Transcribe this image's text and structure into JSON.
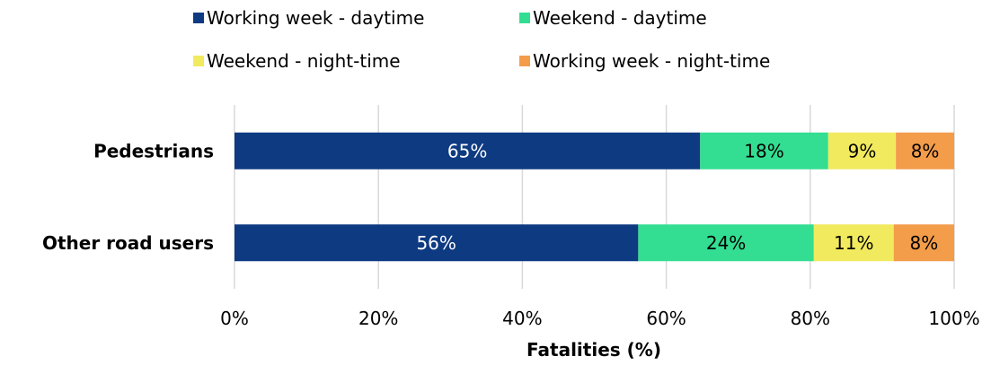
{
  "chart_data": {
    "type": "stacked_barh",
    "categories": [
      "Pedestrians",
      "Other road users"
    ],
    "series": [
      {
        "name": "Working week - daytime",
        "color": "#0e3a82",
        "values": [
          64.7,
          56.1
        ],
        "value_labels": [
          "65%",
          "56%"
        ]
      },
      {
        "name": "Weekend - daytime",
        "color": "#33dd91",
        "values": [
          17.8,
          24.4
        ],
        "value_labels": [
          "18%",
          "24%"
        ]
      },
      {
        "name": "Weekend - night-time",
        "color": "#f2ea5e",
        "values": [
          9.4,
          11.1
        ],
        "value_labels": [
          "9%",
          "11%"
        ]
      },
      {
        "name": "Working week - night-time",
        "color": "#f39c4a",
        "values": [
          8.1,
          8.4
        ],
        "value_labels": [
          "8%",
          "8%"
        ]
      }
    ],
    "x_label": "Fatalities (%)",
    "xlim": [
      0,
      100
    ],
    "xticks": [
      {
        "value": 0,
        "label": "0%"
      },
      {
        "value": 20,
        "label": "20%"
      },
      {
        "value": 40,
        "label": "40%"
      },
      {
        "value": 60,
        "label": "60%"
      },
      {
        "value": 80,
        "label": "80%"
      },
      {
        "value": 100,
        "label": "100%"
      }
    ],
    "grid": true,
    "legend": "top"
  }
}
